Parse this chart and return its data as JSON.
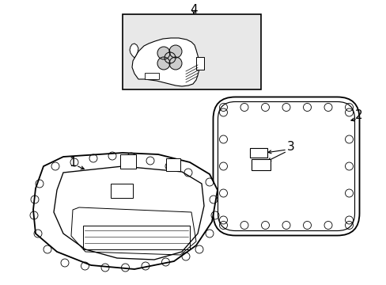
{
  "bg_color": "#ffffff",
  "line_color": "#000000",
  "box4_fill": "#e8e8e8",
  "lw_main": 1.2,
  "lw_thin": 0.7,
  "lw_bolt": 0.6
}
